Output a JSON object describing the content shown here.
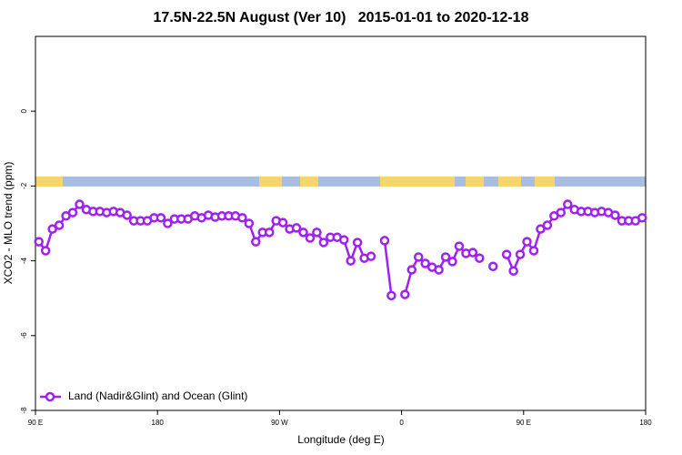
{
  "chart_data": {
    "type": "line",
    "title": "17.5N-22.5N August (Ver 10)   2015-01-01 to 2020-12-18",
    "x_label": "Longitude (deg E)",
    "y_label": "XCO2 - MLO trend (ppm)",
    "x": [
      92.5,
      97.5,
      102.5,
      107.5,
      112.5,
      117.5,
      122.5,
      127.5,
      132.5,
      137.5,
      142.5,
      147.5,
      152.5,
      157.5,
      162.5,
      167.5,
      172.5,
      177.5,
      182.5,
      187.5,
      192.5,
      197.5,
      202.5,
      207.5,
      212.5,
      217.5,
      222.5,
      227.5,
      232.5,
      237.5,
      242.5,
      247.5,
      252.5,
      257.5,
      262.5,
      267.5,
      272.5,
      277.5,
      282.5,
      287.5,
      292.5,
      297.5,
      302.5,
      307.5,
      312.5,
      317.5,
      322.5,
      327.5,
      332.5,
      337.5,
      342.5,
      347.5,
      352.5,
      357.5,
      362.5,
      367.5,
      372.5,
      377.5,
      382.5,
      387.5,
      392.5,
      397.5,
      402.5,
      407.5,
      412.5,
      417.5,
      422.5,
      427.5,
      432.5,
      437.5,
      442.5,
      447.5,
      452.5,
      457.5,
      462.5,
      467.5,
      472.5,
      477.5,
      482.5,
      487.5,
      492.5,
      497.5,
      502.5,
      507.5,
      512.5,
      517.5,
      522.5,
      527.5,
      532.5,
      537.5
    ],
    "series": [
      {
        "name": "Land (Nadir&Glint) and Ocean (Glint)",
        "color": "#a020f0",
        "values": [
          -3.49,
          -3.73,
          -3.15,
          -3.05,
          -2.8,
          -2.71,
          -2.49,
          -2.63,
          -2.68,
          -2.68,
          -2.71,
          -2.68,
          -2.71,
          -2.78,
          -2.93,
          -2.93,
          -2.93,
          -2.85,
          -2.85,
          -3.0,
          -2.88,
          -2.88,
          -2.88,
          -2.8,
          -2.85,
          -2.78,
          -2.83,
          -2.8,
          -2.8,
          -2.8,
          -2.85,
          -3.0,
          -3.49,
          -3.24,
          -3.24,
          -2.93,
          -2.98,
          -3.15,
          -3.12,
          -3.24,
          -3.39,
          -3.24,
          -3.51,
          -3.37,
          -3.37,
          -3.44,
          -4.0,
          -3.51,
          -3.93,
          -3.88,
          null,
          -3.46,
          -4.93,
          null,
          -4.9,
          -4.24,
          -3.9,
          -4.07,
          -4.17,
          -4.24,
          -3.9,
          -4.02,
          -3.61,
          -3.8,
          -3.78,
          -3.93,
          null,
          -4.15,
          null,
          -3.83,
          -4.27,
          -3.83,
          -3.49,
          -3.73,
          -3.15,
          -3.05,
          -2.8,
          -2.71,
          -2.49,
          -2.63,
          -2.68,
          -2.68,
          -2.71,
          -2.68,
          -2.71,
          -2.78,
          -2.93,
          -2.93,
          -2.93,
          -2.85
        ]
      }
    ],
    "xlim": [
      90,
      540
    ],
    "xticks": [
      {
        "value": 90,
        "label": "90 E"
      },
      180,
      {
        "value": 270,
        "label": "90 W"
      },
      {
        "value": 360,
        "label": "0"
      },
      {
        "value": 450,
        "label": "90 E"
      },
      {
        "value": 540,
        "label": "180"
      }
    ],
    "ylim": [
      -8,
      2
    ],
    "yticks": [
      -8,
      -6,
      -4,
      -2,
      0
    ],
    "legend": "bottom-left"
  }
}
